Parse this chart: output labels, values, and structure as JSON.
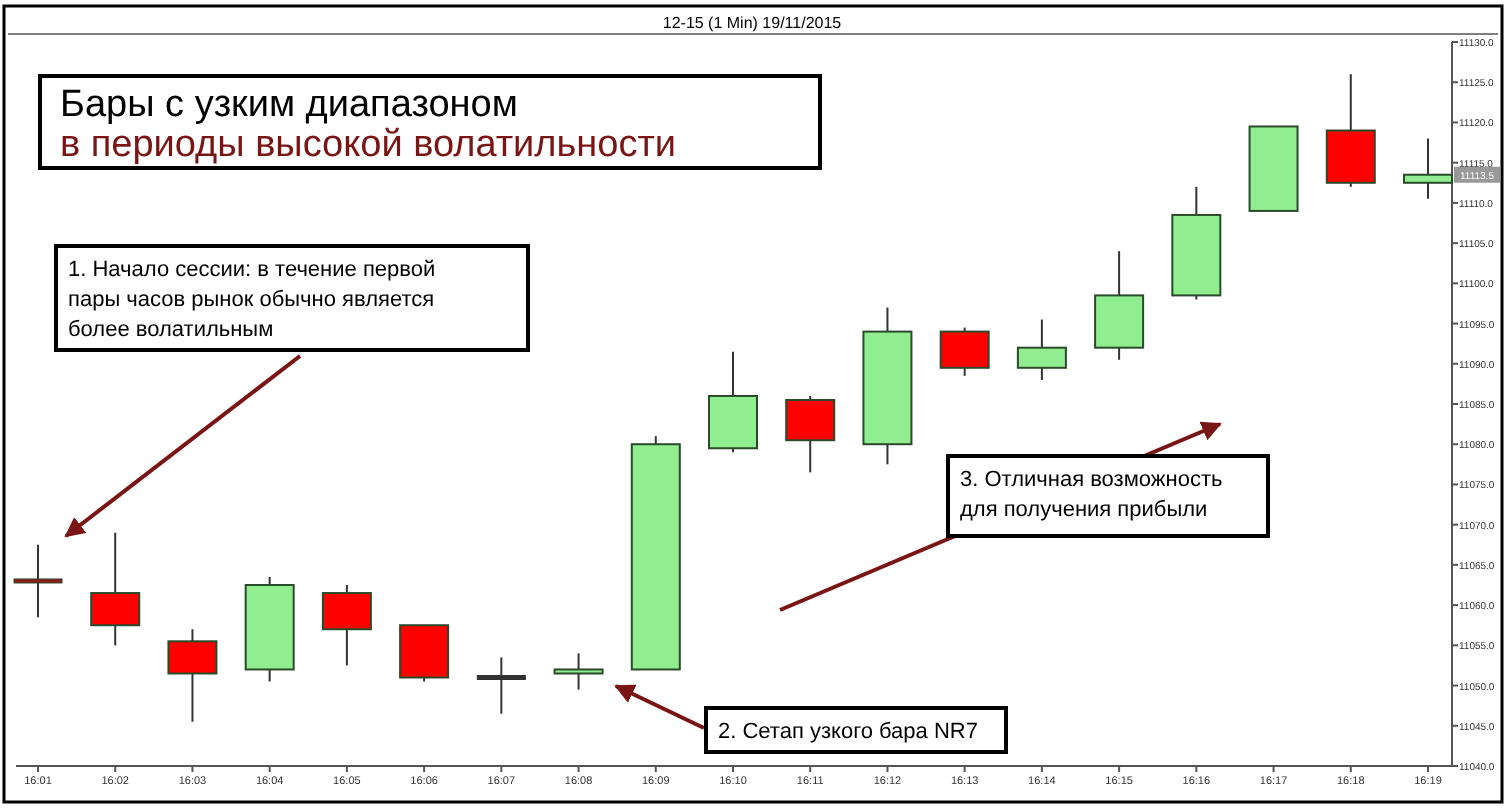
{
  "chart_data": {
    "type": "candlestick",
    "title": "Бары с узким диапазоном",
    "subtitle": "в периоды высокой волатильности",
    "categories": [
      "16:01",
      "16:02",
      "16:03",
      "16:04",
      "16:05",
      "16:06",
      "16:07",
      "16:08",
      "16:09",
      "16:10",
      "16:11",
      "16:12",
      "16:13",
      "16:14",
      "16:15",
      "16:16",
      "16:17",
      "16:18",
      "16:19"
    ],
    "ohlc": [
      [
        11063,
        11067.5,
        11058.5,
        11063
      ],
      [
        11061.5,
        11069,
        11055,
        11057.5
      ],
      [
        11055.5,
        11057,
        11045.5,
        11051.5
      ],
      [
        11052,
        11063.5,
        11050.5,
        11062.5
      ],
      [
        11061.5,
        11062.5,
        11052.5,
        11057
      ],
      [
        11057.5,
        11057.5,
        11050.5,
        11051
      ],
      [
        11051,
        11053.5,
        11046.5,
        11051
      ],
      [
        11051.5,
        11054,
        11049.5,
        11052
      ],
      [
        11052,
        11081,
        11052,
        11080
      ],
      [
        11079.5,
        11091.5,
        11079,
        11086
      ],
      [
        11085.5,
        11086,
        11076.5,
        11080.5
      ],
      [
        11080,
        11097,
        11077.5,
        11094
      ],
      [
        11094,
        11094.5,
        11088.5,
        11089.5
      ],
      [
        11089.5,
        11095.5,
        11088,
        11092
      ],
      [
        11092,
        11104,
        11090.5,
        11098.5
      ],
      [
        11098.5,
        11112,
        11098,
        11108.5
      ],
      [
        11109,
        11119.5,
        11109,
        11119.5
      ],
      [
        11119,
        11126,
        11112,
        11112.5
      ],
      [
        11112.5,
        11118,
        11110.5,
        11113.5
      ]
    ],
    "colors": [
      "#8b1a1a",
      "#ff0000",
      "#ff0000",
      "#90ee90",
      "#ff0000",
      "#ff0000",
      "#333333",
      "#90ee90",
      "#90ee90",
      "#90ee90",
      "#ff0000",
      "#90ee90",
      "#ff0000",
      "#90ee90",
      "#90ee90",
      "#90ee90",
      "#90ee90",
      "#ff0000",
      "#90ee90"
    ],
    "ylim": [
      11040,
      11130
    ],
    "yticks": [
      {
        "value": 11040,
        "label": "11040.0"
      },
      {
        "value": 11045,
        "label": "11045.0"
      },
      {
        "value": 11050,
        "label": "11050.0"
      },
      {
        "value": 11055,
        "label": "11055.0"
      },
      {
        "value": 11060,
        "label": "11060.0"
      },
      {
        "value": 11065,
        "label": "11065.0"
      },
      {
        "value": 11070,
        "label": "11070.0"
      },
      {
        "value": 11075,
        "label": "11075.0"
      },
      {
        "value": 11080,
        "label": "11080.0"
      },
      {
        "value": 11085,
        "label": "11085.0"
      },
      {
        "value": 11090,
        "label": "11090.0"
      },
      {
        "value": 11095,
        "label": "11095.0"
      },
      {
        "value": 11100,
        "label": "11100.0"
      },
      {
        "value": 11105,
        "label": "11105.0"
      },
      {
        "value": 11110,
        "label": "11110.0"
      },
      {
        "value": 11115,
        "label": "11115.0"
      },
      {
        "value": 11120,
        "label": "11120.0"
      },
      {
        "value": 11125,
        "label": "11125.0"
      },
      {
        "value": 11130,
        "label": "11130.0"
      }
    ],
    "annotations": [
      "12-15 (1 Min)  19/11/2015",
      "1. Начало сессии: в течение первой\nпары часов рынок обычно является\nболее волатильным",
      "2. Сетап узкого бара NR7",
      "3. Отличная возможность\nдля получения прибыли",
      "11113.5"
    ]
  }
}
